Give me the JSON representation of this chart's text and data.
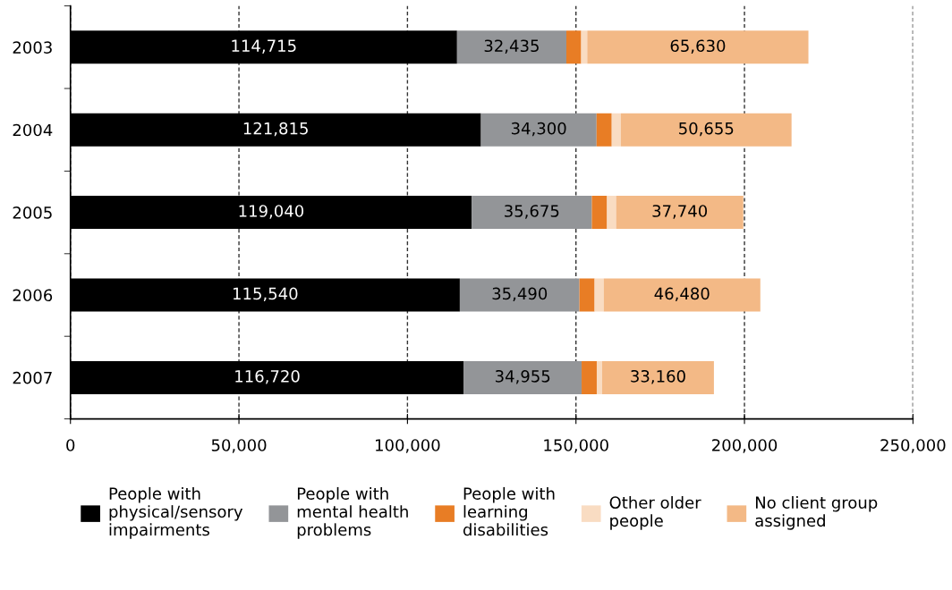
{
  "chart_data": {
    "type": "bar",
    "orientation": "horizontal",
    "stacked": true,
    "categories": [
      "2003",
      "2004",
      "2005",
      "2006",
      "2007"
    ],
    "series": [
      {
        "name": "People with physical/sensory impairments",
        "color": "#000000",
        "values": [
          114715,
          121815,
          119040,
          115540,
          116720
        ],
        "value_labels": [
          "114,715",
          "121,815",
          "119,040",
          "115,540",
          "116,720"
        ]
      },
      {
        "name": "People with mental health problems",
        "color": "#939598",
        "values": [
          32435,
          34300,
          35675,
          35490,
          34955
        ],
        "value_labels": [
          "32,435",
          "34,300",
          "35,675",
          "35,490",
          "34,955"
        ]
      },
      {
        "name": "People with learning disabilities",
        "color": "#e87d25",
        "values": [
          4400,
          4500,
          4500,
          4500,
          4500
        ]
      },
      {
        "name": "Other older people",
        "color": "#f9dcc2",
        "values": [
          1800,
          2700,
          2700,
          2700,
          1600
        ]
      },
      {
        "name": "No client group assigned",
        "color": "#f3b986",
        "values": [
          65630,
          50655,
          37740,
          46480,
          33160
        ],
        "value_labels": [
          "65,630",
          "50,655",
          "37,740",
          "46,480",
          "33,160"
        ]
      }
    ],
    "xlim": [
      0,
      250000
    ],
    "xticks": [
      {
        "value": 0,
        "label": "0"
      },
      {
        "value": 50000,
        "label": "50,000"
      },
      {
        "value": 100000,
        "label": "100,000"
      },
      {
        "value": 150000,
        "label": "150,000"
      },
      {
        "value": 200000,
        "label": "200,000"
      },
      {
        "value": 250000,
        "label": "250,000"
      }
    ],
    "grid": "x",
    "legend": "bottom"
  }
}
